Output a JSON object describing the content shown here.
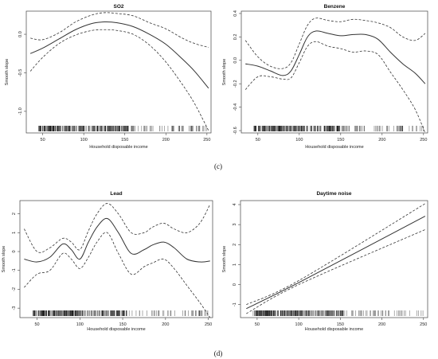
{
  "colors": {
    "fit_line": "#333333",
    "ci_line": "#333333",
    "frame": "#444444",
    "rug": "#111111"
  },
  "captions": [
    "(c)",
    "(d)"
  ],
  "chart_data": [
    {
      "type": "line",
      "title": "SO2",
      "xlabel": "Household disposable income",
      "ylabel": "Smooth slope",
      "xlim": [
        30,
        255
      ],
      "ylim": [
        -1.28,
        0.3
      ],
      "xticks": [
        50,
        100,
        150,
        200,
        250
      ],
      "yticks": [
        -1.0,
        -0.5,
        0.0
      ],
      "ytick_labels": [
        "-1.0",
        "-0.5",
        "0.0"
      ],
      "grid": false,
      "legend": false,
      "series": [
        {
          "role": "estimate",
          "style": "solid",
          "x": [
            35,
            50,
            70,
            90,
            110,
            125,
            140,
            160,
            180,
            200,
            220,
            235,
            252
          ],
          "y": [
            -0.25,
            -0.18,
            -0.06,
            0.06,
            0.14,
            0.16,
            0.15,
            0.1,
            0.0,
            -0.13,
            -0.32,
            -0.48,
            -0.7
          ]
        },
        {
          "role": "upper",
          "style": "dashed",
          "x": [
            35,
            50,
            70,
            90,
            110,
            125,
            140,
            160,
            180,
            200,
            220,
            235,
            252
          ],
          "y": [
            -0.05,
            -0.07,
            0.02,
            0.16,
            0.25,
            0.28,
            0.27,
            0.24,
            0.15,
            0.07,
            -0.05,
            -0.12,
            -0.17
          ]
        },
        {
          "role": "lower",
          "style": "dashed",
          "x": [
            35,
            50,
            70,
            90,
            110,
            125,
            140,
            160,
            180,
            200,
            220,
            235,
            252
          ],
          "y": [
            -0.48,
            -0.3,
            -0.12,
            -0.01,
            0.05,
            0.06,
            0.05,
            0.0,
            -0.14,
            -0.36,
            -0.65,
            -0.9,
            -1.25
          ]
        }
      ]
    },
    {
      "type": "line",
      "title": "Benzene",
      "xlabel": "Household disposable income",
      "ylabel": "Smooth slope",
      "xlim": [
        30,
        255
      ],
      "ylim": [
        -0.62,
        0.42
      ],
      "xticks": [
        50,
        100,
        150,
        200,
        250
      ],
      "yticks": [
        -0.6,
        -0.4,
        -0.2,
        0.0,
        0.2,
        0.4
      ],
      "ytick_labels": [
        "-0.6",
        "-0.4",
        "-0.2",
        "0.0",
        "0.2",
        "0.4"
      ],
      "grid": false,
      "legend": false,
      "series": [
        {
          "role": "estimate",
          "style": "solid",
          "x": [
            35,
            50,
            65,
            80,
            90,
            100,
            110,
            120,
            135,
            150,
            165,
            180,
            195,
            210,
            225,
            240,
            252
          ],
          "y": [
            -0.03,
            -0.05,
            -0.09,
            -0.13,
            -0.09,
            0.05,
            0.2,
            0.25,
            0.23,
            0.21,
            0.22,
            0.22,
            0.18,
            0.07,
            -0.03,
            -0.11,
            -0.2
          ]
        },
        {
          "role": "upper",
          "style": "dashed",
          "x": [
            35,
            50,
            65,
            80,
            90,
            100,
            110,
            120,
            135,
            150,
            165,
            180,
            195,
            210,
            225,
            240,
            252
          ],
          "y": [
            0.17,
            0.03,
            -0.05,
            -0.07,
            -0.02,
            0.14,
            0.3,
            0.36,
            0.34,
            0.33,
            0.35,
            0.34,
            0.32,
            0.28,
            0.2,
            0.17,
            0.23
          ]
        },
        {
          "role": "lower",
          "style": "dashed",
          "x": [
            35,
            50,
            65,
            80,
            90,
            100,
            110,
            120,
            135,
            150,
            165,
            180,
            195,
            210,
            225,
            240,
            252
          ],
          "y": [
            -0.25,
            -0.14,
            -0.14,
            -0.16,
            -0.15,
            -0.02,
            0.12,
            0.16,
            0.12,
            0.1,
            0.07,
            0.08,
            0.05,
            -0.1,
            -0.25,
            -0.42,
            -0.62
          ]
        }
      ]
    },
    {
      "type": "line",
      "title": "Lead",
      "xlabel": "Household disposable income",
      "ylabel": "Smooth slope",
      "xlim": [
        30,
        255
      ],
      "ylim": [
        -3.5,
        2.7
      ],
      "xticks": [
        50,
        100,
        150,
        200,
        250
      ],
      "yticks": [
        -3,
        -2,
        -1,
        0,
        1,
        2
      ],
      "ytick_labels": [
        "-3",
        "-2",
        "-1",
        "0",
        "1",
        "2"
      ],
      "grid": false,
      "legend": false,
      "series": [
        {
          "role": "estimate",
          "style": "solid",
          "x": [
            35,
            50,
            65,
            80,
            90,
            100,
            110,
            120,
            132,
            145,
            160,
            175,
            185,
            198,
            210,
            225,
            240,
            252
          ],
          "y": [
            -0.4,
            -0.55,
            -0.3,
            0.4,
            0.1,
            -0.4,
            0.5,
            1.3,
            1.75,
            1.0,
            -0.1,
            0.1,
            0.35,
            0.5,
            0.2,
            -0.4,
            -0.55,
            -0.5
          ]
        },
        {
          "role": "upper",
          "style": "dashed",
          "x": [
            35,
            50,
            65,
            80,
            90,
            100,
            110,
            120,
            132,
            145,
            160,
            175,
            185,
            198,
            210,
            225,
            240,
            252
          ],
          "y": [
            1.2,
            0.0,
            0.2,
            0.7,
            0.5,
            0.1,
            1.1,
            2.0,
            2.55,
            2.0,
            1.0,
            1.0,
            1.3,
            1.5,
            1.2,
            1.0,
            1.5,
            2.5
          ]
        },
        {
          "role": "lower",
          "style": "dashed",
          "x": [
            35,
            50,
            65,
            80,
            90,
            100,
            110,
            120,
            132,
            145,
            160,
            175,
            185,
            198,
            210,
            225,
            240,
            252
          ],
          "y": [
            -1.9,
            -1.2,
            -1.0,
            -0.1,
            -0.4,
            -0.9,
            -0.3,
            0.5,
            1.0,
            -0.1,
            -1.2,
            -0.8,
            -0.6,
            -0.4,
            -0.9,
            -1.8,
            -2.7,
            -3.5
          ]
        }
      ]
    },
    {
      "type": "line",
      "title": "Daytime noise",
      "xlabel": "Household disposable income",
      "ylabel": "Smooth slope",
      "xlim": [
        30,
        255
      ],
      "ylim": [
        -1.65,
        4.2
      ],
      "xticks": [
        50,
        100,
        150,
        200,
        250
      ],
      "yticks": [
        -1,
        0,
        1,
        2,
        3,
        4
      ],
      "ytick_labels": [
        "-1",
        "0",
        "1",
        "2",
        "3",
        "4"
      ],
      "grid": false,
      "legend": false,
      "series": [
        {
          "role": "estimate",
          "style": "solid",
          "x": [
            37,
            100,
            252
          ],
          "y": [
            -1.2,
            0.1,
            3.42
          ]
        },
        {
          "role": "upper",
          "style": "dashed",
          "x": [
            37,
            100,
            252
          ],
          "y": [
            -1.0,
            0.2,
            4.05
          ]
        },
        {
          "role": "lower",
          "style": "dashed",
          "x": [
            37,
            100,
            252
          ],
          "y": [
            -1.45,
            0.0,
            2.75
          ]
        }
      ]
    }
  ]
}
